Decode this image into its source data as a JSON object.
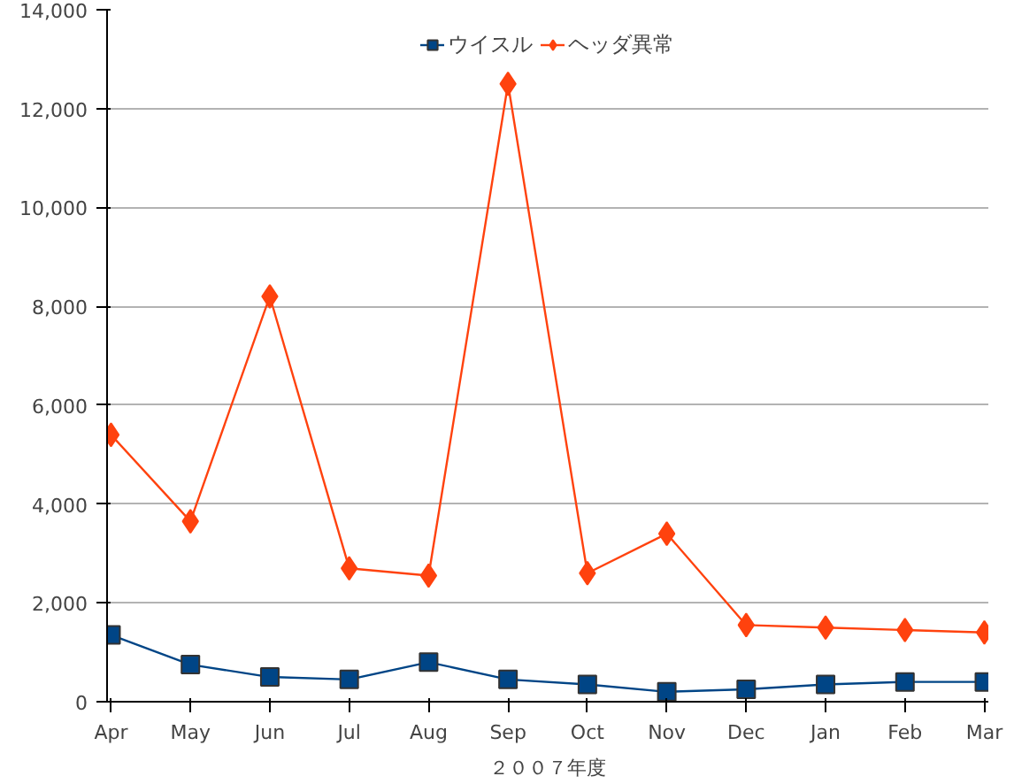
{
  "chart_data": {
    "type": "line",
    "xlabel": "２００７年度",
    "categories": [
      "Apr",
      "May",
      "Jun",
      "Jul",
      "Aug",
      "Sep",
      "Oct",
      "Nov",
      "Dec",
      "Jan",
      "Feb",
      "Mar"
    ],
    "series": [
      {
        "name": "ウイスル",
        "color": "#004586",
        "marker": "square",
        "values": [
          1350,
          750,
          500,
          450,
          800,
          450,
          350,
          200,
          250,
          350,
          400,
          400
        ]
      },
      {
        "name": "ヘッダ異常",
        "color": "#ff420e",
        "marker": "diamond",
        "values": [
          5400,
          3650,
          8200,
          2700,
          2550,
          12500,
          2600,
          3400,
          1550,
          1500,
          1450,
          1400
        ]
      }
    ],
    "ylim": [
      0,
      14000
    ],
    "yticks": [
      {
        "value": 0,
        "label": "0"
      },
      {
        "value": 2000,
        "label": "2,000"
      },
      {
        "value": 4000,
        "label": "4,000"
      },
      {
        "value": 6000,
        "label": "6,000"
      },
      {
        "value": 8000,
        "label": "8,000"
      },
      {
        "value": 10000,
        "label": "10,000"
      },
      {
        "value": 12000,
        "label": "12,000"
      },
      {
        "value": 14000,
        "label": "14,000"
      }
    ],
    "grid": "y",
    "legend": "top",
    "line_style": "solid"
  }
}
